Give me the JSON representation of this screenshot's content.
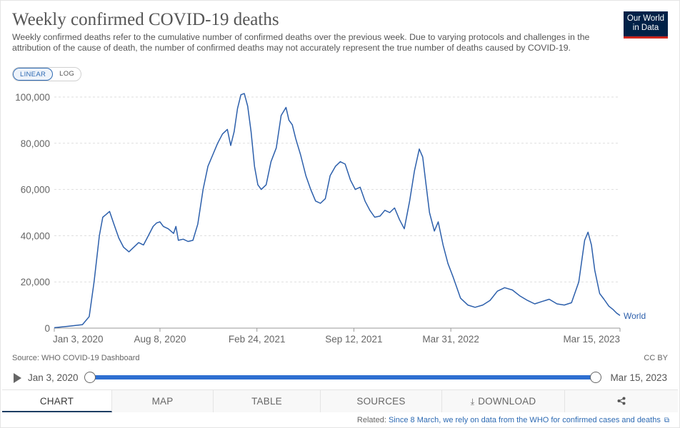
{
  "header": {
    "title": "Weekly confirmed COVID-19 deaths",
    "subtitle": "Weekly confirmed deaths refer to the cumulative number of confirmed deaths over the previous week. Due to varying protocols and challenges in the attribution of the cause of death, the number of confirmed deaths may not accurately represent the true number of deaths caused by COVID-19.",
    "logo_line1": "Our World",
    "logo_line2": "in Data"
  },
  "scale_toggle": {
    "linear": "LINEAR",
    "log": "LOG",
    "selected": "LINEAR"
  },
  "colors": {
    "series": "#2c5fab",
    "grid": "#dddddd",
    "accent": "#2e6fd1",
    "logo_bg": "#002147",
    "logo_stripe": "#ce261e"
  },
  "chart_data": {
    "type": "line",
    "title": "Weekly confirmed COVID-19 deaths",
    "ylim": [
      0,
      100000
    ],
    "yticks": [
      0,
      20000,
      40000,
      60000,
      80000,
      100000
    ],
    "ytick_labels": [
      "0",
      "20,000",
      "40,000",
      "60,000",
      "80,000",
      "100,000"
    ],
    "xlim": [
      "2020-01-03",
      "2023-03-15"
    ],
    "xtick_labels": [
      "Jan 3, 2020",
      "Aug 8, 2020",
      "Feb 24, 2021",
      "Sep 12, 2021",
      "Mar 31, 2022",
      "Mar 15, 2023"
    ],
    "xtick_dates": [
      "2020-01-03",
      "2020-08-08",
      "2021-02-24",
      "2021-09-12",
      "2022-03-31",
      "2023-03-15"
    ],
    "grid": true,
    "series": [
      {
        "name": "World",
        "x": [
          "2020-01-03",
          "2020-02-01",
          "2020-03-01",
          "2020-03-15",
          "2020-03-25",
          "2020-04-05",
          "2020-04-12",
          "2020-04-18",
          "2020-04-26",
          "2020-05-05",
          "2020-05-15",
          "2020-05-25",
          "2020-06-05",
          "2020-06-15",
          "2020-06-25",
          "2020-07-05",
          "2020-07-15",
          "2020-07-25",
          "2020-08-01",
          "2020-08-08",
          "2020-08-15",
          "2020-08-25",
          "2020-09-05",
          "2020-09-10",
          "2020-09-15",
          "2020-09-25",
          "2020-10-05",
          "2020-10-15",
          "2020-10-25",
          "2020-11-05",
          "2020-11-15",
          "2020-11-25",
          "2020-12-05",
          "2020-12-15",
          "2020-12-25",
          "2021-01-01",
          "2021-01-08",
          "2021-01-15",
          "2021-01-22",
          "2021-01-29",
          "2021-02-05",
          "2021-02-12",
          "2021-02-19",
          "2021-02-26",
          "2021-03-05",
          "2021-03-15",
          "2021-03-25",
          "2021-04-05",
          "2021-04-15",
          "2021-04-25",
          "2021-05-01",
          "2021-05-08",
          "2021-05-15",
          "2021-05-25",
          "2021-06-05",
          "2021-06-15",
          "2021-06-25",
          "2021-07-05",
          "2021-07-15",
          "2021-07-25",
          "2021-08-05",
          "2021-08-15",
          "2021-08-25",
          "2021-09-05",
          "2021-09-15",
          "2021-09-25",
          "2021-10-05",
          "2021-10-15",
          "2021-10-25",
          "2021-11-05",
          "2021-11-15",
          "2021-11-25",
          "2021-12-05",
          "2021-12-15",
          "2021-12-25",
          "2022-01-05",
          "2022-01-15",
          "2022-01-25",
          "2022-02-01",
          "2022-02-08",
          "2022-02-15",
          "2022-02-25",
          "2022-03-05",
          "2022-03-15",
          "2022-03-25",
          "2022-04-05",
          "2022-04-20",
          "2022-05-05",
          "2022-05-20",
          "2022-06-05",
          "2022-06-20",
          "2022-07-05",
          "2022-07-20",
          "2022-08-05",
          "2022-08-20",
          "2022-09-05",
          "2022-09-20",
          "2022-10-05",
          "2022-10-20",
          "2022-11-05",
          "2022-11-20",
          "2022-12-05",
          "2022-12-20",
          "2023-01-01",
          "2023-01-08",
          "2023-01-15",
          "2023-01-22",
          "2023-02-01",
          "2023-02-10",
          "2023-02-20",
          "2023-03-01",
          "2023-03-08",
          "2023-03-15"
        ],
        "y": [
          200,
          800,
          1500,
          5000,
          20000,
          40000,
          48000,
          49000,
          50500,
          45000,
          39000,
          35000,
          33000,
          35000,
          37000,
          36000,
          40000,
          44000,
          45500,
          46000,
          44000,
          43000,
          41000,
          44000,
          38000,
          38500,
          37500,
          38000,
          45000,
          60000,
          70000,
          75000,
          80000,
          84000,
          86000,
          79000,
          85000,
          95000,
          101000,
          101500,
          96000,
          85000,
          70000,
          62000,
          60000,
          62000,
          72000,
          78000,
          92000,
          95500,
          90000,
          88000,
          82000,
          75000,
          66000,
          60000,
          55000,
          54000,
          56000,
          66000,
          70000,
          72000,
          71000,
          64000,
          60000,
          61000,
          55000,
          51000,
          48000,
          48500,
          51000,
          50000,
          52000,
          47000,
          43000,
          55000,
          68000,
          77500,
          74000,
          62000,
          50000,
          42000,
          46000,
          36000,
          28000,
          22000,
          13000,
          10000,
          9000,
          10000,
          12000,
          16000,
          17500,
          16500,
          14000,
          12000,
          10500,
          11500,
          12500,
          10500,
          10000,
          11000,
          20000,
          38000,
          41500,
          36000,
          25000,
          15000,
          12500,
          9500,
          8000,
          6500,
          5500
        ]
      }
    ]
  },
  "footer": {
    "source": "Source: WHO COVID-19 Dashboard",
    "license": "CC BY",
    "timeline_start": "Jan 3, 2020",
    "timeline_end": "Mar 15, 2023"
  },
  "tabs": [
    {
      "label": "CHART",
      "active": true
    },
    {
      "label": "MAP"
    },
    {
      "label": "TABLE"
    },
    {
      "label": "SOURCES"
    },
    {
      "label": "DOWNLOAD"
    },
    {
      "label": ""
    }
  ],
  "related": {
    "prefix": "Related:",
    "link_text": "Since 8 March, we rely on data from the WHO for confirmed cases and deaths"
  }
}
